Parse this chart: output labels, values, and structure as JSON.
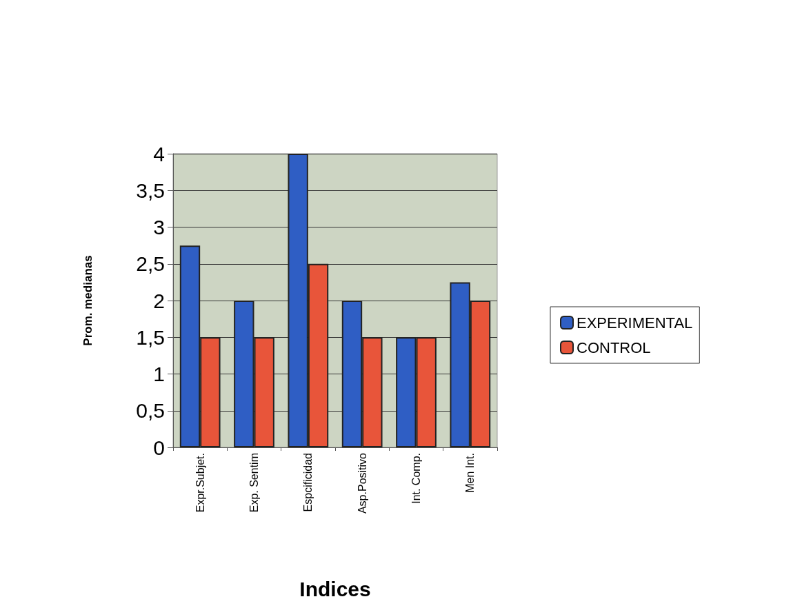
{
  "chart_data": {
    "type": "bar",
    "xlabel": "Indices",
    "ylabel": "Prom. medianas",
    "categories": [
      "Expr.Subjet.",
      "Exp. Sentim",
      "Espcificidad",
      "Asp.Positivo",
      "Int. Comp.",
      "Men Int."
    ],
    "series": [
      {
        "name": "EXPERIMENTAL",
        "color": "#2f5ec4",
        "values": [
          2.75,
          2,
          4,
          2,
          1.5,
          2.25
        ]
      },
      {
        "name": "CONTROL",
        "color": "#e8553a",
        "values": [
          1.5,
          1.5,
          2.5,
          1.5,
          1.5,
          2
        ]
      }
    ],
    "ylim": [
      0,
      4
    ],
    "yticks": [
      0,
      {
        "value": 0.5,
        "label": "0,5"
      },
      1,
      {
        "value": 1.5,
        "label": "1,5"
      },
      2,
      {
        "value": 2.5,
        "label": "2,5"
      },
      3,
      {
        "value": 3.5,
        "label": "3,5"
      },
      4
    ],
    "grid": "y",
    "legend": "right"
  }
}
